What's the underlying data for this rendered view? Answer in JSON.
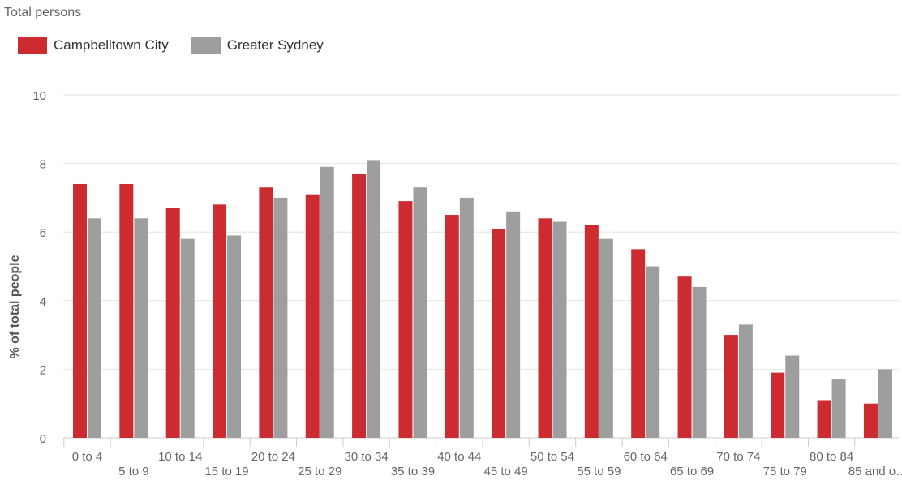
{
  "subtitle": "Total persons",
  "legend": [
    {
      "name": "Campbelltown City",
      "color": "#cc2c30"
    },
    {
      "name": "Greater Sydney",
      "color": "#9e9e9e"
    }
  ],
  "chart_data": {
    "type": "bar",
    "ylabel": "% of total people",
    "xlabel": "",
    "ylim": [
      0,
      10
    ],
    "yticks": [
      0,
      2,
      4,
      6,
      8,
      10
    ],
    "grid": true,
    "legend_position": "top-left",
    "categories": [
      "0 to 4",
      "5 to 9",
      "10 to 14",
      "15 to 19",
      "20 to 24",
      "25 to 29",
      "30 to 34",
      "35 to 39",
      "40 to 44",
      "45 to 49",
      "50 to 54",
      "55 to 59",
      "60 to 64",
      "65 to 69",
      "70 to 74",
      "75 to 79",
      "80 to 84",
      "85 and o…"
    ],
    "series": [
      {
        "name": "Campbelltown City",
        "color": "#cc2c30",
        "values": [
          7.4,
          7.4,
          6.7,
          6.8,
          7.3,
          7.1,
          7.7,
          6.9,
          6.5,
          6.1,
          6.4,
          6.2,
          5.5,
          4.7,
          3.0,
          1.9,
          1.1,
          1.0
        ]
      },
      {
        "name": "Greater Sydney",
        "color": "#9e9e9e",
        "values": [
          6.4,
          6.4,
          5.8,
          5.9,
          7.0,
          7.9,
          8.1,
          7.3,
          7.0,
          6.6,
          6.3,
          5.8,
          5.0,
          4.4,
          3.3,
          2.4,
          1.7,
          2.0
        ]
      }
    ]
  }
}
